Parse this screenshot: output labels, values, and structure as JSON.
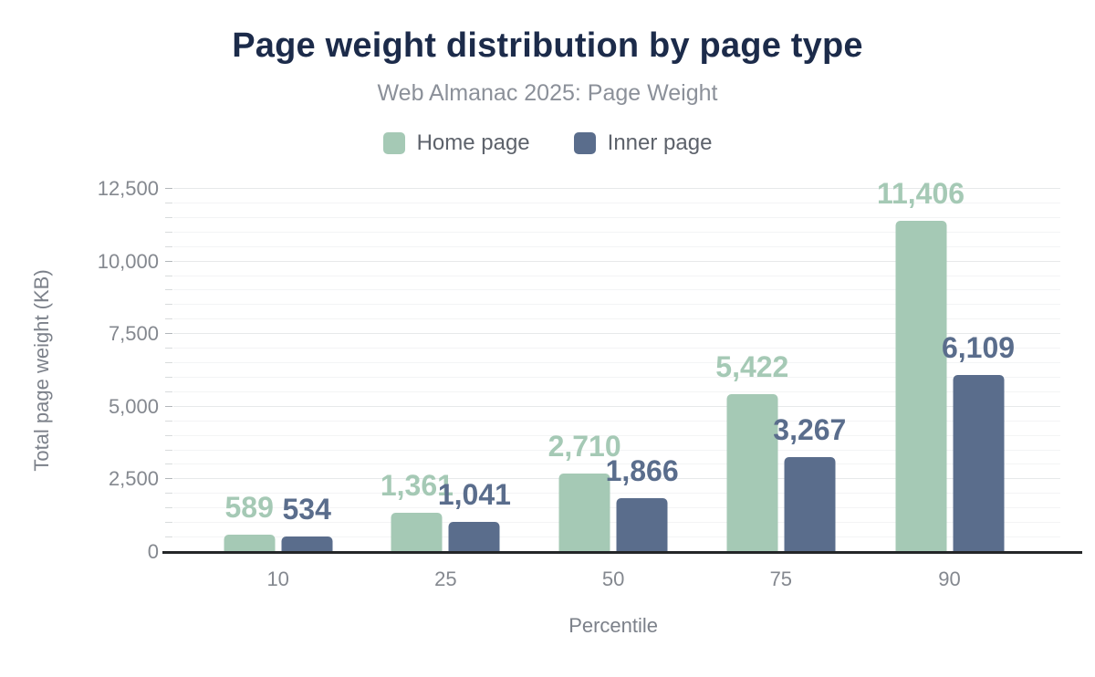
{
  "chart_data": {
    "type": "bar",
    "title": "Page weight distribution by page type",
    "subtitle": "Web Almanac 2025: Page Weight",
    "xlabel": "Percentile",
    "ylabel": "Total page weight (KB)",
    "categories": [
      "10",
      "25",
      "50",
      "75",
      "90"
    ],
    "series": [
      {
        "name": "Home page",
        "color": "#a5c9b5",
        "values": [
          589,
          1361,
          2710,
          5422,
          11406
        ],
        "value_labels": [
          "589",
          "1,361",
          "2,710",
          "5,422",
          "11,406"
        ]
      },
      {
        "name": "Inner page",
        "color": "#5a6d8c",
        "values": [
          534,
          1041,
          1866,
          3267,
          6109
        ],
        "value_labels": [
          "534",
          "1,041",
          "1,866",
          "3,267",
          "6,109"
        ]
      }
    ],
    "ylim": [
      0,
      12500
    ],
    "y_major_tick_step": 2500,
    "y_minor_tick_step": 500,
    "y_tick_labels": [
      "0",
      "2,500",
      "5,000",
      "7,500",
      "10,000",
      "12,500"
    ],
    "grid": true,
    "legend_position": "top"
  },
  "style": {
    "title_color": "#1c2b4a",
    "subtitle_color": "#8b9099",
    "axis_label_color": "#84888f",
    "axis_line_color": "#242628",
    "home_page_color": "#a5c9b5",
    "inner_page_color": "#5a6d8c"
  }
}
